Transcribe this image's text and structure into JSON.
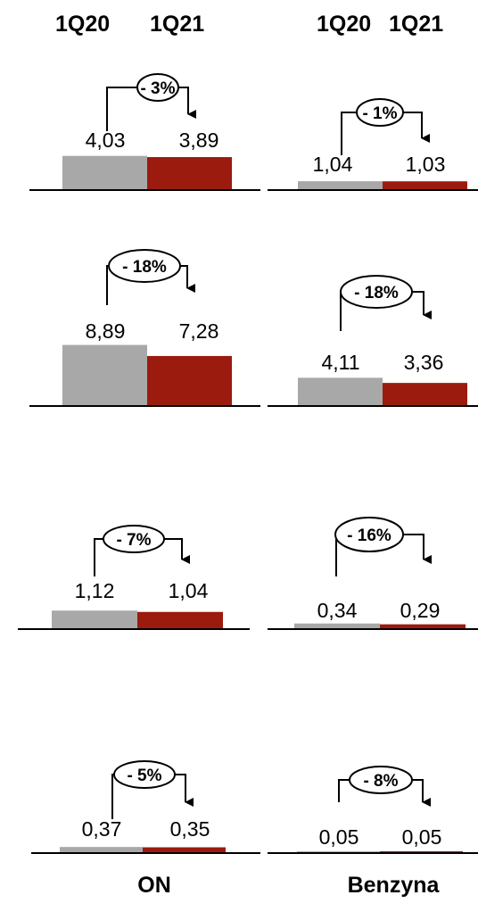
{
  "column_headers": {
    "left": [
      "1Q20",
      "1Q21"
    ],
    "right": [
      "1Q20",
      "1Q21"
    ]
  },
  "footer": {
    "left": "ON",
    "right": "Benzyna"
  },
  "colors": {
    "prior": "#a8a8a8",
    "current": "#9b1b0e",
    "axis": "#000000"
  },
  "chart_data": [
    {
      "type": "bar",
      "group": "ON",
      "categories": [
        "1Q20",
        "1Q21"
      ],
      "values": [
        4.03,
        3.89
      ],
      "labels": [
        "4,03",
        "3,89"
      ],
      "change": "- 3%"
    },
    {
      "type": "bar",
      "group": "Benzyna",
      "categories": [
        "1Q20",
        "1Q21"
      ],
      "values": [
        1.04,
        1.03
      ],
      "labels": [
        "1,04",
        "1,03"
      ],
      "change": "- 1%"
    },
    {
      "type": "bar",
      "group": "ON",
      "categories": [
        "1Q20",
        "1Q21"
      ],
      "values": [
        8.89,
        7.28
      ],
      "labels": [
        "8,89",
        "7,28"
      ],
      "change": "- 18%"
    },
    {
      "type": "bar",
      "group": "Benzyna",
      "categories": [
        "1Q20",
        "1Q21"
      ],
      "values": [
        4.11,
        3.36
      ],
      "labels": [
        "4,11",
        "3,36"
      ],
      "change": "- 18%"
    },
    {
      "type": "bar",
      "group": "ON",
      "categories": [
        "1Q20",
        "1Q21"
      ],
      "values": [
        1.12,
        1.04
      ],
      "labels": [
        "1,12",
        "1,04"
      ],
      "change": "- 7%"
    },
    {
      "type": "bar",
      "group": "Benzyna",
      "categories": [
        "1Q20",
        "1Q21"
      ],
      "values": [
        0.34,
        0.29
      ],
      "labels": [
        "0,34",
        "0,29"
      ],
      "change": "- 16%"
    },
    {
      "type": "bar",
      "group": "ON",
      "categories": [
        "1Q20",
        "1Q21"
      ],
      "values": [
        0.37,
        0.35
      ],
      "labels": [
        "0,37",
        "0,35"
      ],
      "change": "- 5%"
    },
    {
      "type": "bar",
      "group": "Benzyna",
      "categories": [
        "1Q20",
        "1Q21"
      ],
      "values": [
        0.05,
        0.05
      ],
      "labels": [
        "0,05",
        "0,05"
      ],
      "change": "- 8%"
    }
  ]
}
